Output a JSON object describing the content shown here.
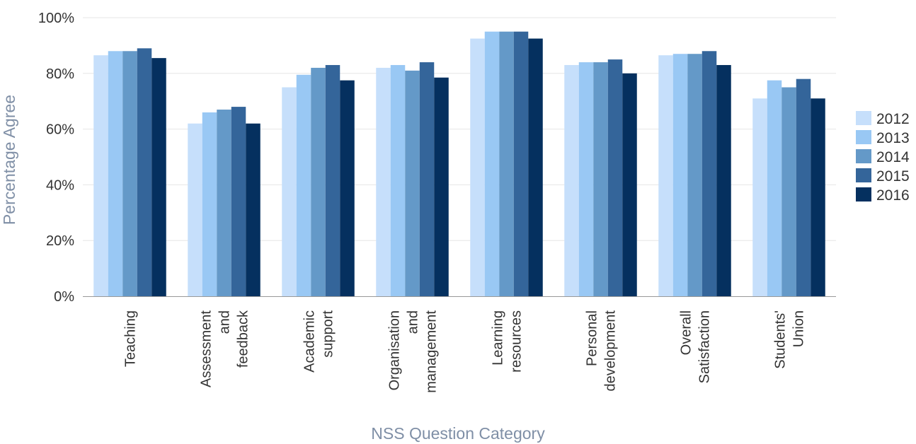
{
  "chart_data": {
    "type": "bar",
    "title": "",
    "xlabel": "NSS Question Category",
    "ylabel": "Percentage Agree",
    "ylim": [
      0,
      100
    ],
    "y_ticks": [
      "0%",
      "20%",
      "40%",
      "60%",
      "80%",
      "100%"
    ],
    "grid": true,
    "legend_position": "right",
    "categories": [
      [
        "Teaching"
      ],
      [
        "Assessment",
        "and",
        "feedback"
      ],
      [
        "Academic",
        "support"
      ],
      [
        "Organisation",
        "and",
        "management"
      ],
      [
        "Learning",
        "resources"
      ],
      [
        "Personal",
        "development"
      ],
      [
        "Overall",
        "Satisfaction"
      ],
      [
        "Students'",
        "Union"
      ]
    ],
    "series": [
      {
        "name": "2012",
        "color": "#c6dffb",
        "values": [
          86.5,
          62,
          75,
          82,
          92.5,
          83,
          86.5,
          71
        ]
      },
      {
        "name": "2013",
        "color": "#99c8f4",
        "values": [
          88,
          66,
          79.5,
          83,
          95,
          84,
          87,
          77.5
        ]
      },
      {
        "name": "2014",
        "color": "#6499c8",
        "values": [
          88,
          67,
          82,
          81,
          95,
          84,
          87,
          75
        ]
      },
      {
        "name": "2015",
        "color": "#34659a",
        "values": [
          89,
          68,
          83,
          84,
          95,
          85,
          88,
          78
        ]
      },
      {
        "name": "2016",
        "color": "#05305f",
        "values": [
          85.5,
          62,
          77.5,
          78.5,
          92.5,
          80,
          83,
          71
        ]
      }
    ]
  }
}
